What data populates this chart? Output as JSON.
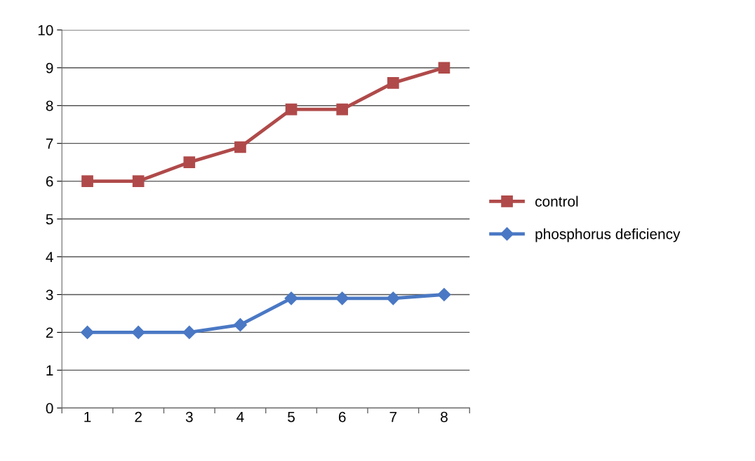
{
  "chart_data": {
    "type": "line",
    "categories": [
      "1",
      "2",
      "3",
      "4",
      "5",
      "6",
      "7",
      "8"
    ],
    "series": [
      {
        "name": "control",
        "color": "#b04a4a",
        "marker": "square",
        "values": [
          6.0,
          6.0,
          6.5,
          6.9,
          7.9,
          7.9,
          8.6,
          9.0
        ]
      },
      {
        "name": "phosphorus deficiency",
        "color": "#4a78c4",
        "marker": "diamond",
        "values": [
          2.0,
          2.0,
          2.0,
          2.2,
          2.9,
          2.9,
          2.9,
          3.0
        ]
      }
    ],
    "ylim": [
      0,
      10
    ],
    "yticks": [
      0,
      1,
      2,
      3,
      4,
      5,
      6,
      7,
      8,
      9,
      10
    ],
    "grid": "y",
    "legend": "right",
    "line_style": "solid"
  }
}
